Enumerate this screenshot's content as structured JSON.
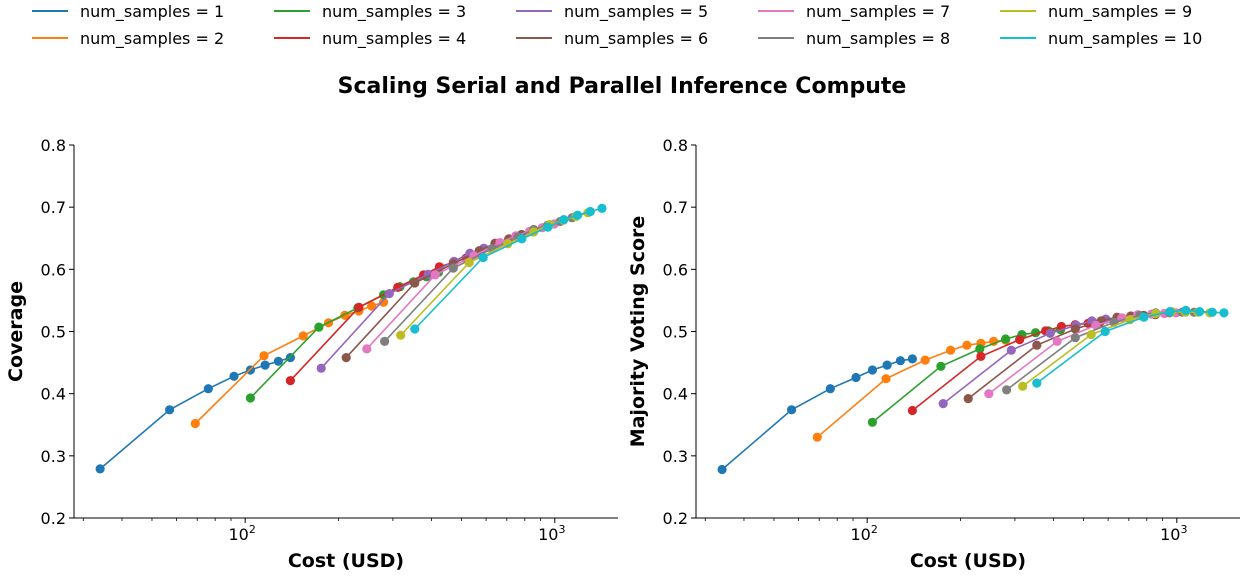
{
  "title": "Scaling Serial and Parallel Inference Compute",
  "legend": [
    {
      "label": "num_samples = 1",
      "color": "#1f77b4"
    },
    {
      "label": "num_samples = 2",
      "color": "#ff7f0e"
    },
    {
      "label": "num_samples = 3",
      "color": "#2ca02c"
    },
    {
      "label": "num_samples = 4",
      "color": "#d62728"
    },
    {
      "label": "num_samples = 5",
      "color": "#9467bd"
    },
    {
      "label": "num_samples = 6",
      "color": "#8c564b"
    },
    {
      "label": "num_samples = 7",
      "color": "#e377c2"
    },
    {
      "label": "num_samples = 8",
      "color": "#7f7f7f"
    },
    {
      "label": "num_samples = 9",
      "color": "#bcbd22"
    },
    {
      "label": "num_samples = 10",
      "color": "#17becf"
    }
  ],
  "chart_data": [
    {
      "type": "line",
      "title": "",
      "xlabel": "Cost (USD)",
      "ylabel": "Coverage",
      "xscale": "log",
      "xlim": [
        28,
        1600
      ],
      "ylim": [
        0.2,
        0.8
      ],
      "yticks": [
        "0.2",
        "0.3",
        "0.4",
        "0.5",
        "0.6",
        "0.7",
        "0.8"
      ],
      "xticks": [
        {
          "base": "10",
          "exp": "2",
          "value": 100
        },
        {
          "base": "10",
          "exp": "3",
          "value": 1000
        }
      ],
      "grid": false,
      "series": [
        {
          "name": "num_samples = 1",
          "color": "#1f77b4",
          "x": [
            34,
            57,
            76,
            92,
            104,
            116,
            128,
            140
          ],
          "y": [
            0.279,
            0.374,
            0.408,
            0.428,
            0.438,
            0.446,
            0.452,
            0.458
          ]
        },
        {
          "name": "num_samples = 2",
          "color": "#ff7f0e",
          "x": [
            69,
            115,
            154,
            186,
            210,
            233,
            256,
            280
          ],
          "y": [
            0.352,
            0.461,
            0.493,
            0.514,
            0.526,
            0.533,
            0.541,
            0.547
          ]
        },
        {
          "name": "num_samples = 3",
          "color": "#2ca02c",
          "x": [
            104,
            173,
            231,
            280,
            316,
            350,
            385,
            421
          ],
          "y": [
            0.393,
            0.507,
            0.538,
            0.559,
            0.572,
            0.58,
            0.588,
            0.595
          ]
        },
        {
          "name": "num_samples = 4",
          "color": "#d62728",
          "x": [
            140,
            233,
            311,
            377,
            424,
            470,
            517,
            565
          ],
          "y": [
            0.421,
            0.539,
            0.571,
            0.591,
            0.604,
            0.611,
            0.618,
            0.625
          ]
        },
        {
          "name": "num_samples = 5",
          "color": "#9467bd",
          "x": [
            176,
            292,
            390,
            473,
            532,
            590,
            648,
            708
          ],
          "y": [
            0.441,
            0.561,
            0.592,
            0.613,
            0.626,
            0.634,
            0.641,
            0.648
          ]
        },
        {
          "name": "num_samples = 6",
          "color": "#8c564b",
          "x": [
            212,
            353,
            470,
            570,
            641,
            711,
            781,
            853
          ],
          "y": [
            0.458,
            0.578,
            0.609,
            0.63,
            0.642,
            0.649,
            0.656,
            0.663
          ]
        },
        {
          "name": "num_samples = 7",
          "color": "#e377c2",
          "x": [
            247,
            411,
            548,
            665,
            748,
            829,
            911,
            995
          ],
          "y": [
            0.472,
            0.591,
            0.622,
            0.643,
            0.654,
            0.661,
            0.667,
            0.673
          ]
        },
        {
          "name": "num_samples = 8",
          "color": "#7f7f7f",
          "x": [
            282,
            470,
            627,
            760,
            855,
            948,
            1041,
            1137
          ],
          "y": [
            0.484,
            0.602,
            0.633,
            0.652,
            0.664,
            0.671,
            0.677,
            0.683
          ]
        },
        {
          "name": "num_samples = 9",
          "color": "#bcbd22",
          "x": [
            318,
            529,
            705,
            855,
            962,
            1066,
            1171,
            1279
          ],
          "y": [
            0.494,
            0.611,
            0.641,
            0.66,
            0.672,
            0.679,
            0.685,
            0.691
          ]
        },
        {
          "name": "num_samples = 10",
          "color": "#17becf",
          "x": [
            353,
            587,
            783,
            950,
            1069,
            1185,
            1302,
            1421
          ],
          "y": [
            0.504,
            0.619,
            0.649,
            0.668,
            0.68,
            0.687,
            0.693,
            0.698
          ]
        }
      ]
    },
    {
      "type": "line",
      "title": "",
      "xlabel": "Cost (USD)",
      "ylabel": "Majority Voting Score",
      "xscale": "log",
      "xlim": [
        28,
        1600
      ],
      "ylim": [
        0.2,
        0.8
      ],
      "yticks": [
        "0.2",
        "0.3",
        "0.4",
        "0.5",
        "0.6",
        "0.7",
        "0.8"
      ],
      "xticks": [
        {
          "base": "10",
          "exp": "2",
          "value": 100
        },
        {
          "base": "10",
          "exp": "3",
          "value": 1000
        }
      ],
      "grid": false,
      "series": [
        {
          "name": "num_samples = 1",
          "color": "#1f77b4",
          "x": [
            34,
            57,
            76,
            92,
            104,
            116,
            128,
            140
          ],
          "y": [
            0.278,
            0.374,
            0.408,
            0.426,
            0.438,
            0.446,
            0.453,
            0.456
          ]
        },
        {
          "name": "num_samples = 2",
          "color": "#ff7f0e",
          "x": [
            69,
            115,
            154,
            186,
            210,
            233,
            256,
            280
          ],
          "y": [
            0.33,
            0.424,
            0.454,
            0.47,
            0.478,
            0.481,
            0.484,
            0.486
          ]
        },
        {
          "name": "num_samples = 3",
          "color": "#2ca02c",
          "x": [
            104,
            173,
            231,
            280,
            316,
            350,
            385,
            421
          ],
          "y": [
            0.354,
            0.444,
            0.472,
            0.488,
            0.495,
            0.498,
            0.501,
            0.503
          ]
        },
        {
          "name": "num_samples = 4",
          "color": "#d62728",
          "x": [
            140,
            233,
            311,
            377,
            424,
            470,
            517,
            565
          ],
          "y": [
            0.373,
            0.46,
            0.487,
            0.501,
            0.508,
            0.511,
            0.513,
            0.515
          ]
        },
        {
          "name": "num_samples = 5",
          "color": "#9467bd",
          "x": [
            176,
            292,
            390,
            473,
            532,
            590,
            648,
            708
          ],
          "y": [
            0.384,
            0.47,
            0.497,
            0.51,
            0.517,
            0.52,
            0.522,
            0.524
          ]
        },
        {
          "name": "num_samples = 6",
          "color": "#8c564b",
          "x": [
            212,
            353,
            470,
            570,
            641,
            711,
            781,
            853
          ],
          "y": [
            0.392,
            0.478,
            0.504,
            0.517,
            0.523,
            0.525,
            0.526,
            0.527
          ]
        },
        {
          "name": "num_samples = 7",
          "color": "#e377c2",
          "x": [
            247,
            411,
            548,
            665,
            748,
            829,
            911,
            995
          ],
          "y": [
            0.4,
            0.484,
            0.51,
            0.522,
            0.527,
            0.528,
            0.529,
            0.53
          ]
        },
        {
          "name": "num_samples = 8",
          "color": "#7f7f7f",
          "x": [
            282,
            470,
            627,
            760,
            855,
            948,
            1041,
            1137
          ],
          "y": [
            0.406,
            0.49,
            0.515,
            0.526,
            0.53,
            0.53,
            0.531,
            0.531
          ]
        },
        {
          "name": "num_samples = 9",
          "color": "#bcbd22",
          "x": [
            318,
            529,
            705,
            855,
            962,
            1066,
            1171,
            1279
          ],
          "y": [
            0.412,
            0.495,
            0.519,
            0.529,
            0.532,
            0.531,
            0.531,
            0.53
          ]
        },
        {
          "name": "num_samples = 10",
          "color": "#17becf",
          "x": [
            353,
            587,
            783,
            950,
            1069,
            1185,
            1302,
            1421
          ],
          "y": [
            0.417,
            0.5,
            0.523,
            0.532,
            0.534,
            0.532,
            0.531,
            0.53
          ]
        }
      ]
    }
  ]
}
